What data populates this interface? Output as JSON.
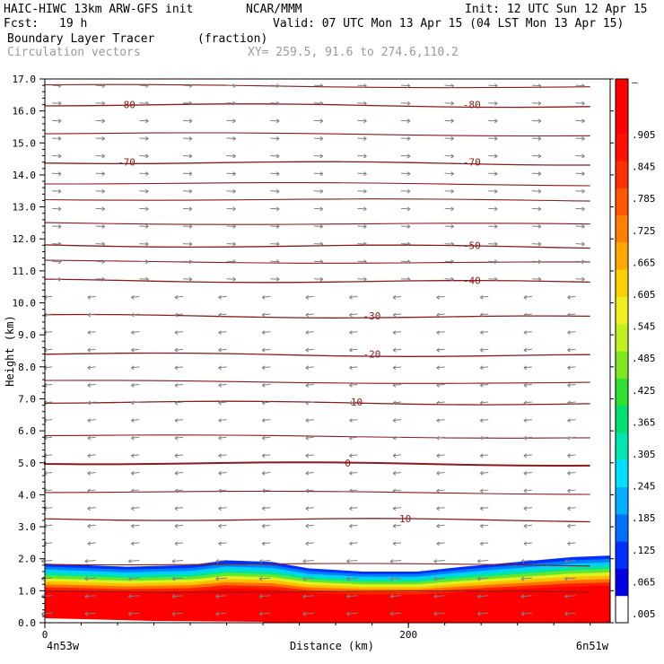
{
  "header": {
    "model": "HAIC-HIWC 13km ARW-GFS init",
    "org": "NCAR/MMM",
    "init": "Init: 12 UTC Sun 12 Apr 15",
    "fcst_label": "Fcst:",
    "fcst_value": "19 h",
    "valid": "Valid: 07 UTC Mon 13 Apr 15 (04 LST Mon 13 Apr 15)",
    "field": "Boundary Layer Tracer",
    "units": "(fraction)",
    "vectors": "Circulation vectors",
    "xy": "XY= 259.5, 91.6 to 274.6,110.2"
  },
  "colors": {
    "contour": "#8b1a1a",
    "vector": "#808080",
    "palette": [
      "#ffffff",
      "#0000e6",
      "#0030ff",
      "#0070ff",
      "#00b0ff",
      "#00e0ff",
      "#00e6b0",
      "#00e070",
      "#30e030",
      "#80e820",
      "#c0f020",
      "#f0f020",
      "#ffd000",
      "#ffa800",
      "#ff8000",
      "#ff5800",
      "#ff3000",
      "#ff1000",
      "#ff0000",
      "#ff0000"
    ]
  },
  "chart_data": {
    "type": "cross-section contour",
    "xlabel": "Distance (km)",
    "ylabel": "Height (km)",
    "x_start_label": "4n53w",
    "x_end_label": "6n51w",
    "xlim": [
      0,
      311
    ],
    "ylim": [
      0,
      17
    ],
    "xticks": [
      0,
      200
    ],
    "yticks": [
      "0.0",
      "1.0",
      "2.0",
      "3.0",
      "4.0",
      "5.0",
      "6.0",
      "7.0",
      "8.0",
      "9.0",
      "10.0",
      "11.0",
      "12.0",
      "13.0",
      "14.0",
      "15.0",
      "16.0",
      "17.0"
    ],
    "colorbar_labels": [
      ".005",
      ".065",
      ".125",
      ".185",
      ".245",
      ".305",
      ".365",
      ".425",
      ".485",
      ".545",
      ".605",
      ".665",
      ".725",
      ".785",
      ".845",
      ".905",
      "–"
    ],
    "temperature_contours": [
      {
        "label": "10",
        "height": 3.25
      },
      {
        "label": "0",
        "height": 5.0
      },
      {
        "label": "-10",
        "height": 6.9
      },
      {
        "label": "-20",
        "height": 8.4
      },
      {
        "label": "-30",
        "height": 9.6
      },
      {
        "label": "-40",
        "height": 10.7
      },
      {
        "label": "-50",
        "height": 11.8
      },
      {
        "label": "-70",
        "height": 14.4
      },
      {
        "label": "-80",
        "height": 16.2
      }
    ],
    "boundary_layer_top": [
      {
        "x": 0,
        "y": 1.85
      },
      {
        "x": 45,
        "y": 1.75
      },
      {
        "x": 80,
        "y": 1.8
      },
      {
        "x": 100,
        "y": 1.95
      },
      {
        "x": 125,
        "y": 1.9
      },
      {
        "x": 145,
        "y": 1.7
      },
      {
        "x": 175,
        "y": 1.6
      },
      {
        "x": 205,
        "y": 1.6
      },
      {
        "x": 230,
        "y": 1.75
      },
      {
        "x": 250,
        "y": 1.85
      },
      {
        "x": 290,
        "y": 2.05
      },
      {
        "x": 311,
        "y": 2.1
      }
    ]
  }
}
